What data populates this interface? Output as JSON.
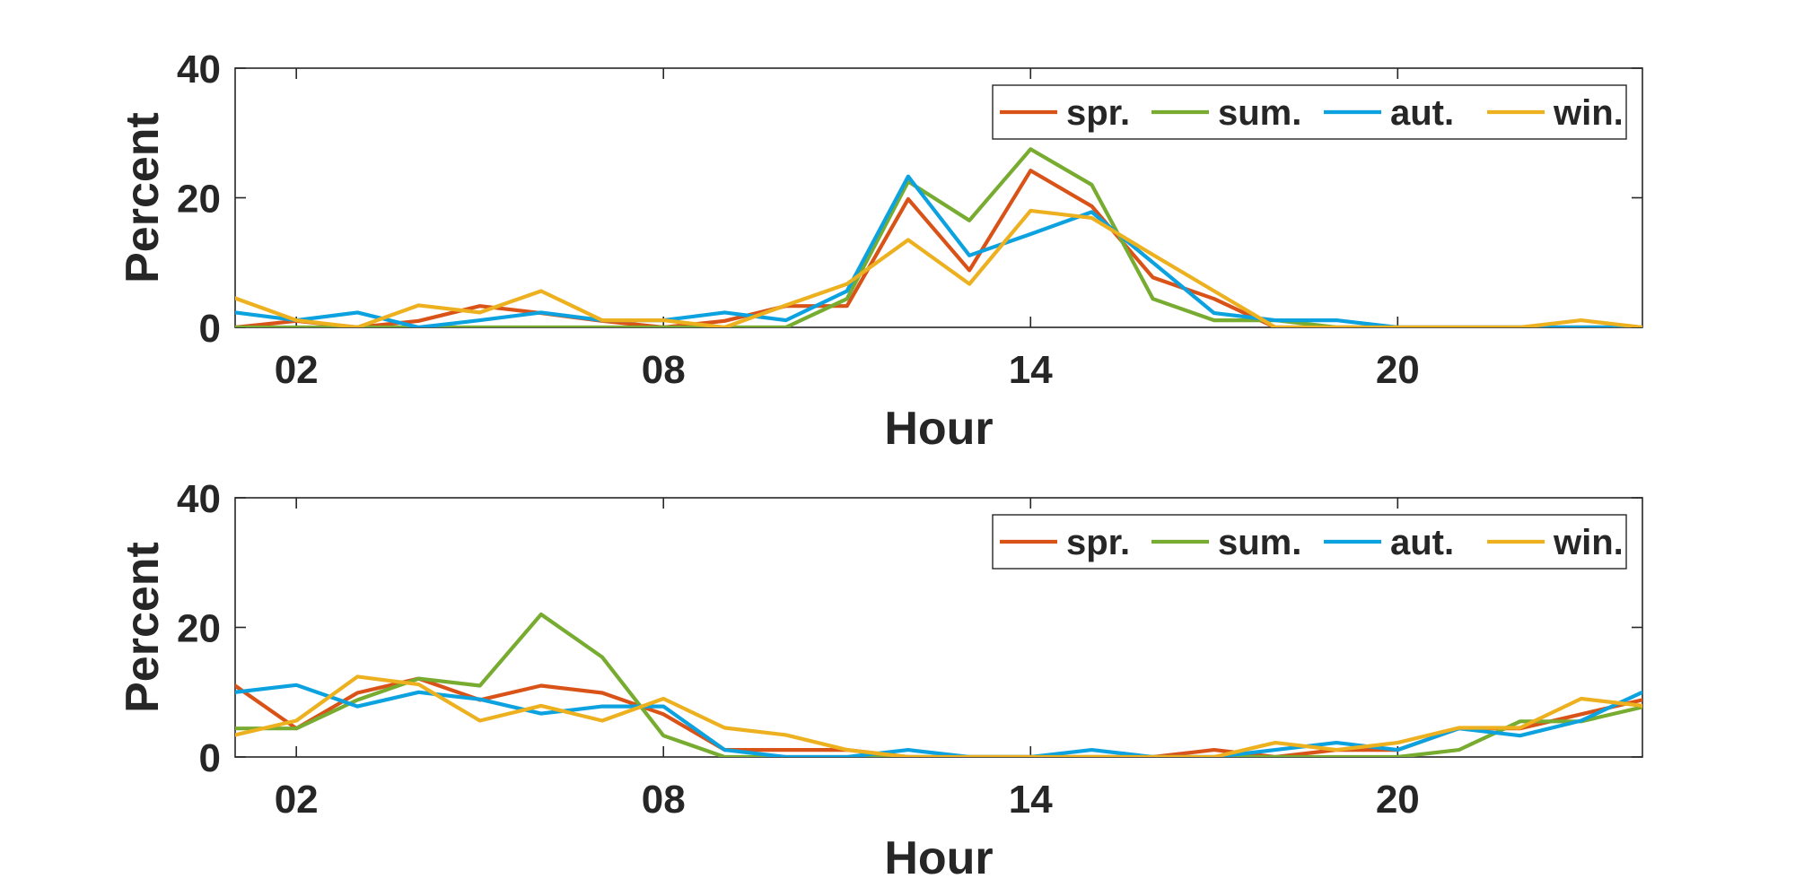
{
  "chart_data": [
    {
      "type": "line",
      "xlabel": "Hour",
      "ylabel": "Percent",
      "xlim": [
        1,
        24
      ],
      "ylim": [
        0,
        40
      ],
      "xticks": [
        2,
        8,
        14,
        20
      ],
      "xtick_labels": [
        "02",
        "08",
        "14",
        "20"
      ],
      "yticks": [
        0,
        20,
        40
      ],
      "ytick_labels": [
        "0",
        "20",
        "40"
      ],
      "grid": false,
      "legend": {
        "placement": "top-right",
        "orientation": "horizontal"
      },
      "x": [
        1,
        2,
        3,
        4,
        5,
        6,
        7,
        8,
        9,
        10,
        11,
        12,
        13,
        14,
        15,
        16,
        17,
        18,
        19,
        20,
        21,
        22,
        23,
        24
      ],
      "series": [
        {
          "name": "spr.",
          "color": "#D95319",
          "values": [
            0,
            1,
            0,
            1,
            3.3,
            2.2,
            1,
            0,
            1,
            3.3,
            3.3,
            19.8,
            8.8,
            24.2,
            18.7,
            7.7,
            4.4,
            0,
            0,
            0,
            0,
            0,
            0,
            0
          ]
        },
        {
          "name": "sum.",
          "color": "#77AC30",
          "values": [
            0,
            0,
            0,
            0,
            0,
            0,
            0,
            0,
            0,
            0,
            4.4,
            22.5,
            16.5,
            27.5,
            22,
            4.4,
            1.1,
            1.1,
            0,
            0,
            0,
            0,
            0,
            0
          ]
        },
        {
          "name": "aut.",
          "color": "#0CA1DF",
          "values": [
            2.3,
            1.1,
            2.3,
            0,
            1.1,
            2.3,
            1.1,
            1.1,
            2.3,
            1.1,
            5.6,
            23.3,
            11.1,
            14.4,
            17.8,
            10,
            2.2,
            1.1,
            1.1,
            0,
            0,
            0,
            0,
            0
          ]
        },
        {
          "name": "win.",
          "color": "#EDB120",
          "values": [
            4.5,
            1.1,
            0,
            3.4,
            2.3,
            5.6,
            1.1,
            1.1,
            0,
            3.4,
            6.7,
            13.5,
            6.7,
            18,
            16.9,
            11.2,
            5.6,
            0,
            0,
            0,
            0,
            0,
            1.1,
            0
          ]
        }
      ]
    },
    {
      "type": "line",
      "xlabel": "Hour",
      "ylabel": "Percent",
      "xlim": [
        1,
        24
      ],
      "ylim": [
        0,
        40
      ],
      "xticks": [
        2,
        8,
        14,
        20
      ],
      "xtick_labels": [
        "02",
        "08",
        "14",
        "20"
      ],
      "yticks": [
        0,
        20,
        40
      ],
      "ytick_labels": [
        "0",
        "20",
        "40"
      ],
      "grid": false,
      "legend": {
        "placement": "top-right",
        "orientation": "horizontal"
      },
      "x": [
        1,
        2,
        3,
        4,
        5,
        6,
        7,
        8,
        9,
        10,
        11,
        12,
        13,
        14,
        15,
        16,
        17,
        18,
        19,
        20,
        21,
        22,
        23,
        24
      ],
      "series": [
        {
          "name": "spr.",
          "color": "#D95319",
          "values": [
            11,
            4.4,
            9.9,
            12.1,
            8.8,
            11,
            9.9,
            6.6,
            1.1,
            1.1,
            1.1,
            0,
            0,
            0,
            0,
            0,
            1.1,
            0,
            1.1,
            1.1,
            4.4,
            4.4,
            6.6,
            8.8
          ]
        },
        {
          "name": "sum.",
          "color": "#77AC30",
          "values": [
            4.4,
            4.4,
            8.8,
            12.1,
            11,
            22,
            15.4,
            3.3,
            0,
            0,
            0,
            0,
            0,
            0,
            0,
            0,
            0,
            0,
            0,
            0,
            1.1,
            5.5,
            5.5,
            7.7
          ]
        },
        {
          "name": "aut.",
          "color": "#0CA1DF",
          "values": [
            10,
            11.1,
            7.8,
            10,
            8.9,
            6.7,
            7.8,
            7.8,
            1.1,
            0,
            0,
            1.1,
            0,
            0,
            1.1,
            0,
            0,
            1.1,
            2.2,
            1.1,
            4.4,
            3.3,
            5.6,
            10
          ]
        },
        {
          "name": "win.",
          "color": "#EDB120",
          "values": [
            3.4,
            5.6,
            12.4,
            11.2,
            5.6,
            7.9,
            5.6,
            9,
            4.5,
            3.4,
            1.1,
            0,
            0,
            0,
            0,
            0,
            0,
            2.2,
            1.1,
            2.2,
            4.5,
            4.5,
            9,
            7.9
          ]
        }
      ]
    }
  ]
}
